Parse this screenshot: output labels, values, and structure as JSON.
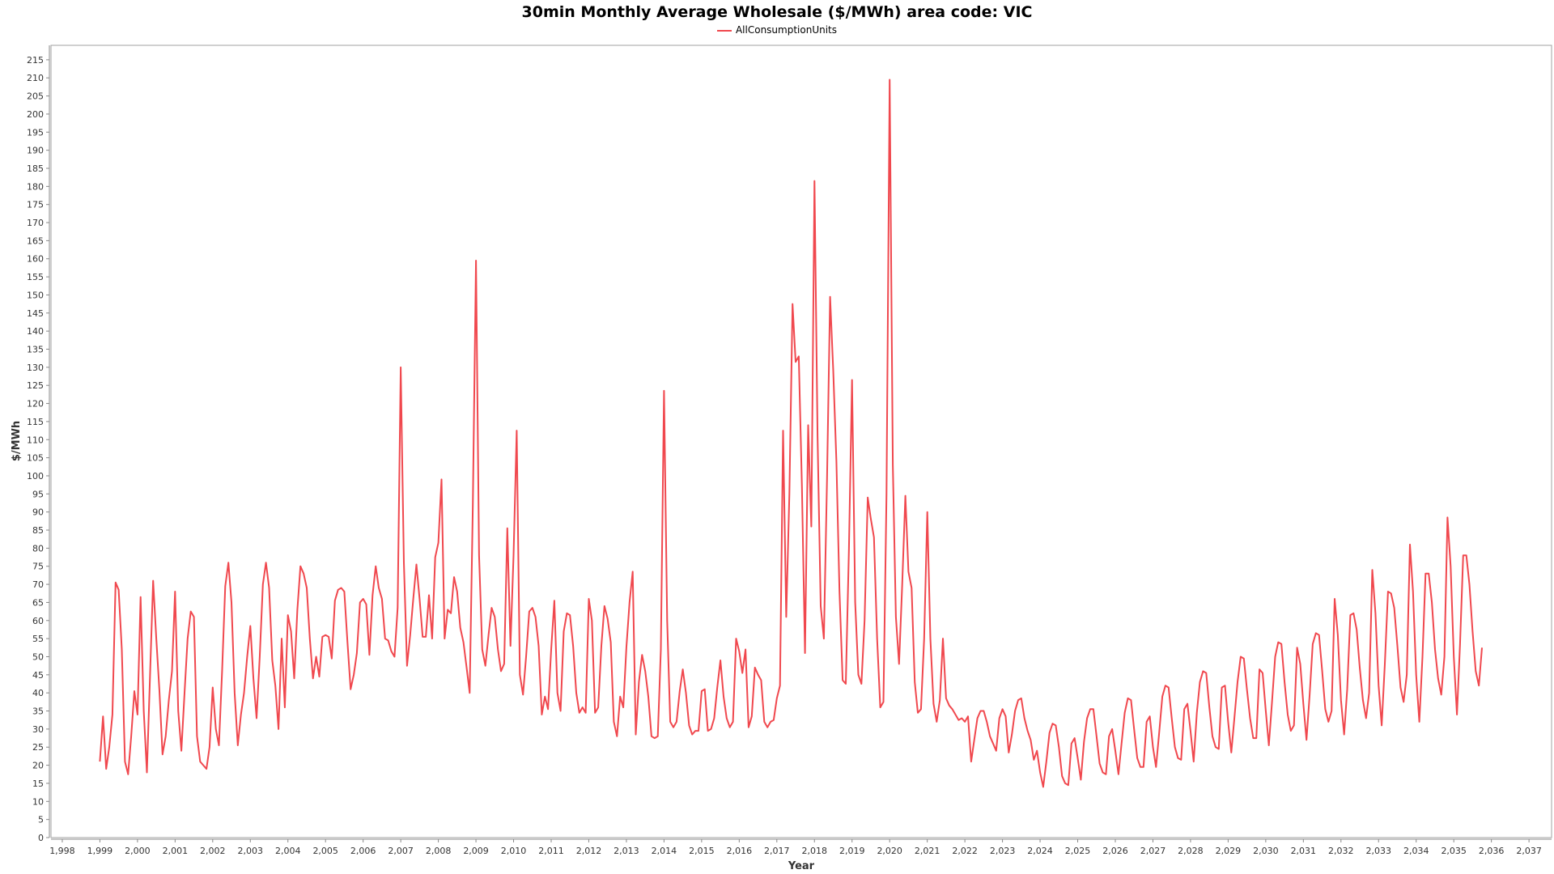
{
  "chart_data": {
    "type": "line",
    "title": "30min Monthly Average Wholesale ($/MWh) area code: VIC",
    "xlabel": "Year",
    "ylabel": "$/MWh",
    "xlim": [
      1997.7,
      2037.6
    ],
    "ylim": [
      0,
      219
    ],
    "x_ticks": [
      1998,
      1999,
      2000,
      2001,
      2002,
      2003,
      2004,
      2005,
      2006,
      2007,
      2008,
      2009,
      2010,
      2011,
      2012,
      2013,
      2014,
      2015,
      2016,
      2017,
      2018,
      2019,
      2020,
      2021,
      2022,
      2023,
      2024,
      2025,
      2026,
      2027,
      2028,
      2029,
      2030,
      2031,
      2032,
      2033,
      2034,
      2035,
      2036,
      2037
    ],
    "x_tick_labels": [
      "1,998",
      "1,999",
      "2,000",
      "2,001",
      "2,002",
      "2,003",
      "2,004",
      "2,005",
      "2,006",
      "2,007",
      "2,008",
      "2,009",
      "2,010",
      "2,011",
      "2,012",
      "2,013",
      "2,014",
      "2,015",
      "2,016",
      "2,017",
      "2,018",
      "2,019",
      "2,020",
      "2,021",
      "2,022",
      "2,023",
      "2,024",
      "2,025",
      "2,026",
      "2,027",
      "2,028",
      "2,029",
      "2,030",
      "2,031",
      "2,032",
      "2,033",
      "2,034",
      "2,035",
      "2,036",
      "2,037"
    ],
    "y_ticks": [
      0,
      5,
      10,
      15,
      20,
      25,
      30,
      35,
      40,
      45,
      50,
      55,
      60,
      65,
      70,
      75,
      80,
      85,
      90,
      95,
      100,
      105,
      110,
      115,
      120,
      125,
      130,
      135,
      140,
      145,
      150,
      155,
      160,
      165,
      170,
      175,
      180,
      185,
      190,
      195,
      200,
      205,
      210,
      215
    ],
    "legend_position": "top-center",
    "grid": false,
    "colors": {
      "series": "#f0484e",
      "axis": "#888888"
    },
    "series": [
      {
        "name": "AllConsumptionUnits",
        "start": "1999-01",
        "step": "month",
        "values": [
          21,
          33.5,
          19,
          25,
          34,
          70.5,
          68.5,
          52,
          21,
          17.5,
          28,
          40.5,
          34,
          66.5,
          35,
          18,
          45,
          71,
          55,
          40.5,
          23,
          28,
          38,
          46,
          68,
          35,
          24,
          40,
          55,
          62.5,
          61,
          28,
          21,
          20,
          19,
          25,
          41.5,
          30,
          25.5,
          46,
          69.5,
          76,
          65,
          40,
          25.5,
          34,
          40,
          50,
          58.5,
          44,
          33,
          50,
          70,
          76,
          69,
          49,
          42,
          30,
          55,
          36,
          61.5,
          57,
          44,
          63,
          75,
          73,
          69,
          55,
          44,
          50,
          44.5,
          55.5,
          56,
          55.5,
          49.5,
          65.5,
          68.5,
          69,
          68,
          54,
          41,
          45,
          51,
          65,
          66,
          64.5,
          50.5,
          67,
          75,
          69,
          66,
          55,
          54.5,
          51.5,
          50,
          63.5,
          130,
          76,
          47.5,
          56,
          66,
          75.5,
          66,
          55.5,
          55.5,
          67,
          55,
          77.5,
          81.5,
          99,
          55,
          63,
          62,
          72,
          68,
          58,
          54,
          47,
          40,
          92,
          159.5,
          78,
          52,
          47.5,
          56,
          63.5,
          61,
          52,
          46,
          48,
          85.5,
          53,
          78,
          112.5,
          45,
          39.5,
          50,
          62.5,
          63.5,
          61,
          53,
          34,
          39,
          35.5,
          52,
          65.5,
          40,
          35,
          57,
          62,
          61.5,
          53,
          40,
          34.5,
          36,
          34.5,
          66,
          60,
          34.5,
          36,
          53,
          64,
          60.5,
          54,
          32,
          28,
          39,
          36,
          52.5,
          65,
          73.5,
          28.5,
          43,
          50.5,
          46,
          39,
          28,
          27.5,
          28,
          52,
          123.5,
          60,
          32,
          30.5,
          32,
          40.5,
          46.5,
          40,
          31,
          28.5,
          29.5,
          29.5,
          40.5,
          41,
          29.5,
          30,
          33,
          41.5,
          49,
          39,
          33,
          30.5,
          32,
          55,
          51.5,
          45.5,
          52,
          30.5,
          33.5,
          47,
          45,
          43.5,
          32,
          30.5,
          32,
          32.5,
          38.5,
          42,
          112.5,
          61,
          95,
          147.5,
          131.5,
          133,
          97,
          51,
          114,
          86,
          181.5,
          111,
          64,
          55,
          99,
          149.5,
          129,
          104,
          68,
          43.5,
          42.5,
          80,
          126.5,
          65,
          45,
          42.5,
          60,
          94,
          88,
          83,
          55,
          36,
          37.5,
          95,
          209.5,
          103,
          61,
          48,
          70,
          94.5,
          73.5,
          69,
          43,
          34.5,
          35.5,
          55,
          90,
          55,
          37,
          32,
          38,
          55,
          38.5,
          36.5,
          35.5,
          34,
          32.5,
          33,
          32,
          33.5,
          21,
          27,
          33,
          35,
          35,
          32,
          28,
          26,
          24,
          33,
          35.5,
          33.5,
          23.5,
          28.5,
          35,
          38,
          38.5,
          33,
          29.5,
          27,
          21.5,
          24,
          18,
          14,
          21,
          29,
          31.5,
          31,
          25,
          17,
          15,
          14.5,
          26,
          27.5,
          22,
          16,
          26.5,
          33,
          35.5,
          35.5,
          28,
          20.5,
          18,
          17.5,
          28,
          30,
          24,
          17.5,
          26,
          34.5,
          38.5,
          38,
          30,
          22,
          19.5,
          19.5,
          32,
          33.5,
          25,
          19.5,
          29,
          39,
          42,
          41.5,
          33,
          25,
          22,
          21.5,
          35.5,
          37,
          29.5,
          21,
          34.5,
          43,
          46,
          45.5,
          36,
          28,
          25,
          24.5,
          41.5,
          42,
          32,
          23.5,
          33,
          43,
          50,
          49.5,
          41,
          33,
          27.5,
          27.5,
          46.5,
          45.5,
          35,
          25.5,
          37.5,
          50,
          54,
          53.5,
          43,
          34,
          29.5,
          31,
          52.5,
          48,
          37,
          27,
          39.5,
          53.5,
          56.5,
          56,
          46,
          35.5,
          32,
          35,
          66,
          56,
          38,
          28.5,
          41,
          61.5,
          62,
          57.5,
          47,
          38,
          33,
          40,
          74,
          62,
          42,
          31,
          48,
          68,
          67.5,
          63.5,
          53,
          41.5,
          37.5,
          45,
          81,
          68,
          45,
          32,
          50,
          73,
          73,
          65,
          52,
          44,
          39.5,
          50,
          88.5,
          75,
          50,
          34,
          53.5,
          78,
          78,
          70,
          57,
          46,
          42,
          52.5
        ]
      }
    ]
  }
}
